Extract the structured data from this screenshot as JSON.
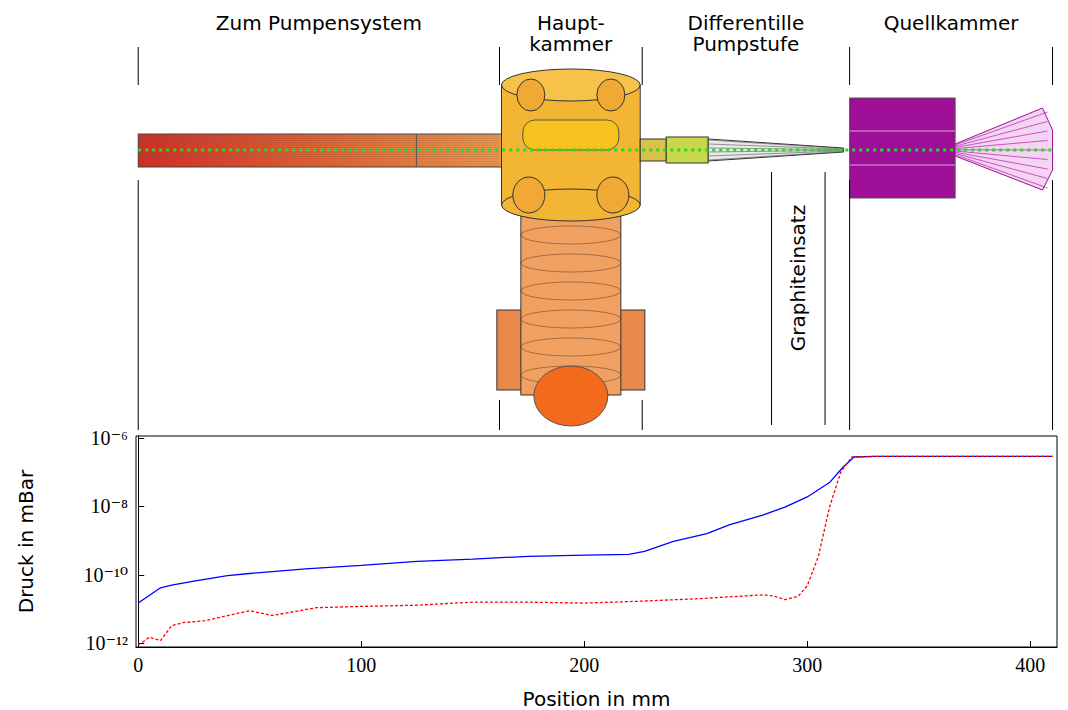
{
  "chart_data": {
    "type": "line",
    "x_label": "Position in mm",
    "y_label": "Druck in mBar",
    "xlim": [
      -1,
      412
    ],
    "xticks": [
      0,
      100,
      200,
      300,
      400
    ],
    "ylim": [
      7.8e-13,
      1.15e-06
    ],
    "yticks": [
      {
        "value": 1e-12,
        "label": "10⁻¹²"
      },
      {
        "value": 1e-10,
        "label": "10⁻¹⁰"
      },
      {
        "value": 1e-08,
        "label": "10⁻⁸"
      },
      {
        "value": 1e-06,
        "label": "10⁻⁶"
      }
    ],
    "log": "y",
    "grid": false,
    "sections": [
      {
        "label": "Zum Pumpensystem",
        "start": 0,
        "end": 162
      },
      {
        "label": "Haupt-\nkammer",
        "start": 162,
        "end": 226
      },
      {
        "label": "Differentille\nPumpstufe",
        "start": 226,
        "end": 319
      },
      {
        "label": "Quellkammer",
        "start": 319,
        "end": 410
      }
    ],
    "insert": {
      "label": "Graphiteinsatz",
      "start": 284,
      "end": 308
    },
    "series": [
      {
        "color": "#0000ff",
        "line_style": "solid",
        "x": [
          0,
          10,
          15,
          25,
          40,
          50,
          75,
          100,
          125,
          150,
          175,
          200,
          220,
          227,
          240,
          255,
          265,
          280,
          290,
          300,
          310,
          316,
          321,
          330,
          410
        ],
        "values": [
          1.5e-11,
          4.2e-11,
          5e-11,
          6.6e-11,
          9.5e-11,
          1.1e-10,
          1.5e-10,
          1.9e-10,
          2.5e-10,
          2.9e-10,
          3.5e-10,
          3.8e-10,
          4e-10,
          4.9e-10,
          9.5e-10,
          1.6e-09,
          2.9e-09,
          5.6e-09,
          9.6e-09,
          1.9e-08,
          5e-08,
          1.4e-07,
          2.8e-07,
          2.9e-07,
          2.9e-07
        ]
      },
      {
        "color": "#ff0000",
        "line_style": "dashed",
        "x": [
          0,
          5,
          10,
          15,
          20,
          30,
          50,
          60,
          80,
          100,
          125,
          150,
          175,
          200,
          225,
          250,
          280,
          285,
          290,
          296,
          300,
          305,
          310,
          315,
          320,
          330,
          410
        ],
        "values": [
          8.9e-13,
          1.5e-12,
          1.2e-12,
          3.3e-12,
          4e-12,
          4.6e-12,
          9e-12,
          6.5e-12,
          1.1e-11,
          1.2e-11,
          1.3e-11,
          1.6e-11,
          1.6e-11,
          1.5e-11,
          1.7e-11,
          2e-11,
          2.6e-11,
          2.4e-11,
          1.9e-11,
          2.4e-11,
          4.8e-11,
          3.5e-10,
          9.6e-09,
          1e-07,
          2.8e-07,
          2.9e-07,
          2.9e-07
        ]
      }
    ]
  }
}
